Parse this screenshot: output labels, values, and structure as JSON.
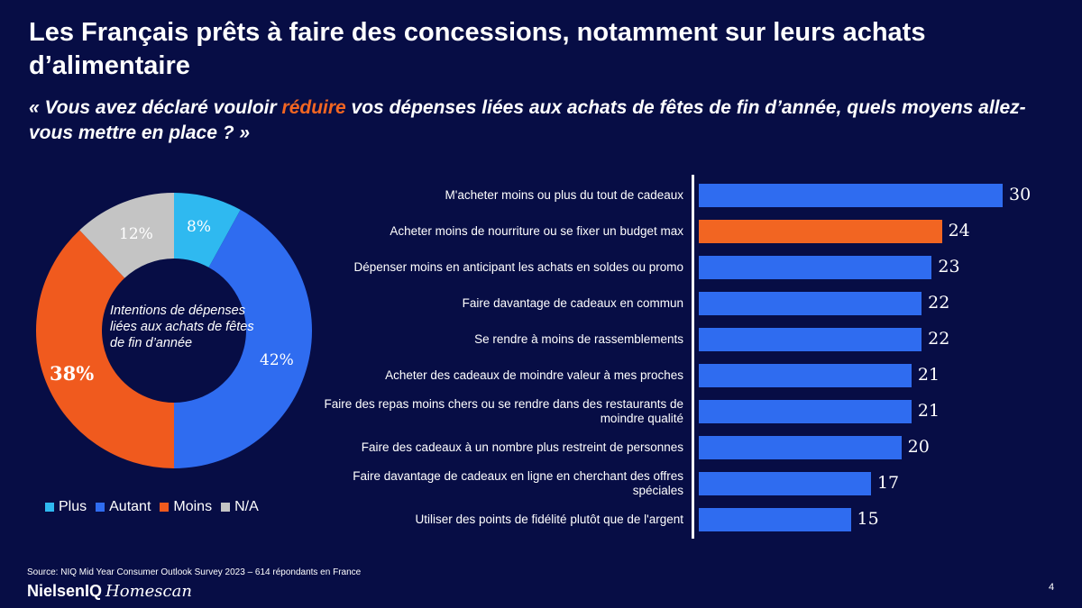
{
  "title": "Les Français prêts à faire des concessions, notamment sur leurs achats d’alimentaire",
  "subtitle": {
    "part1": "« Vous avez déclaré vouloir ",
    "highlight": "réduire",
    "part2": " vos dépenses liées aux achats de fêtes de fin d’année, quels moyens allez-vous mettre en place ? »"
  },
  "chart_data": [
    {
      "type": "pie",
      "center_label": "Intentions de dépenses liées aux achats de fêtes de fin d’année",
      "slices": [
        {
          "name": "Plus",
          "value": 8,
          "label": "8%",
          "color": "#2fb9f0"
        },
        {
          "name": "Autant",
          "value": 42,
          "label": "42%",
          "color": "#2f6cf0"
        },
        {
          "name": "Moins",
          "value": 38,
          "label": "38%",
          "color": "#f05a1e"
        },
        {
          "name": "N/A",
          "value": 12,
          "label": "12%",
          "color": "#c4c4c4"
        }
      ],
      "legend": [
        "Plus",
        "Autant",
        "Moins",
        "N/A"
      ],
      "legend_placement": "bottom"
    },
    {
      "type": "bar",
      "orientation": "horizontal",
      "categories": [
        "M'acheter moins ou plus du tout de cadeaux",
        "Acheter moins de nourriture ou se fixer un budget max",
        "Dépenser moins en anticipant les achats en soldes ou promo",
        "Faire davantage de cadeaux en commun",
        "Se rendre à moins de rassemblements",
        "Acheter des cadeaux de moindre valeur à mes proches",
        "Faire des repas moins chers ou se rendre dans des restaurants de moindre qualité",
        "Faire des cadeaux à un nombre plus restreint de personnes",
        "Faire davantage de cadeaux en ligne en cherchant des offres spéciales",
        "Utiliser des points de fidélité plutôt que de l'argent"
      ],
      "values": [
        30,
        24,
        23,
        22,
        22,
        21,
        21,
        20,
        17,
        15
      ],
      "highlight_index": 1,
      "colors": {
        "default": "#2f6cf0",
        "highlight": "#f26522"
      },
      "xlim": [
        0,
        30
      ]
    }
  ],
  "footer": {
    "source": "Source: NIQ Mid Year Consumer Outlook Survey 2023 – 614 répondants en France",
    "brand_a": "NielsenIQ",
    "brand_b": "Homescan",
    "page_number": "4"
  }
}
